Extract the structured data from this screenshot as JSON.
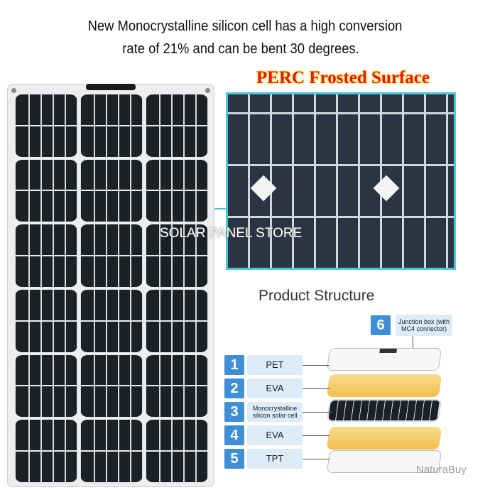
{
  "headline": {
    "line1": "New Monocrystalline silicon cell has a high conversion",
    "line2": "rate of 21% and can be bent 30 degrees."
  },
  "inset": {
    "title": "PERC Frosted Surface",
    "border_color": "#46c9d6",
    "title_color": "#e5181c"
  },
  "watermark": "SOLAR PANEL STORE",
  "structure": {
    "title": "Product Structure",
    "layers": [
      {
        "num": "1",
        "label": "PET"
      },
      {
        "num": "2",
        "label": "EVA"
      },
      {
        "num": "3",
        "label": "Monocrystalline silicon solar cell"
      },
      {
        "num": "4",
        "label": "EVA"
      },
      {
        "num": "5",
        "label": "TPT"
      }
    ],
    "junction": {
      "num": "6",
      "label": "Junction box (with MC4 connector)"
    },
    "accent": "#3e8fd6"
  },
  "brand": "NaturaBuy"
}
